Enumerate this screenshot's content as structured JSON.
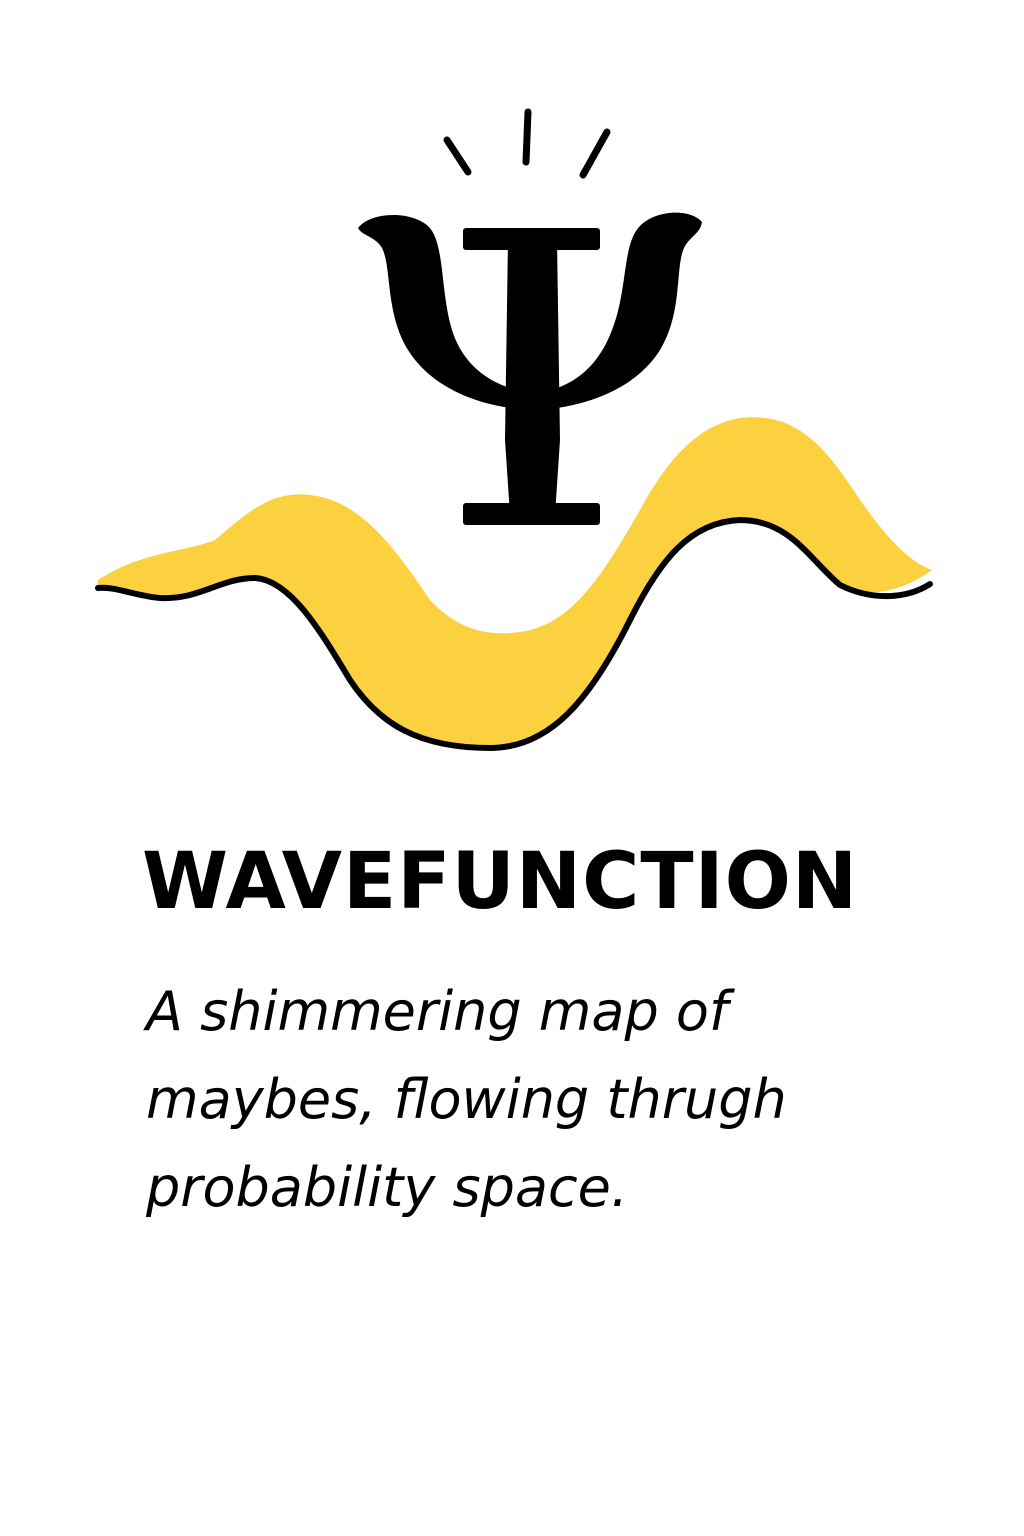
{
  "card": {
    "title": "WAVEFUNCTION",
    "tagline": [
      "A shimmering map of",
      "maybes, flowing thrugh",
      "probability space."
    ]
  },
  "icons": {
    "emblem": "psi-symbol-icon",
    "rays": "spark-rays-icon",
    "wave": "wave-icon"
  },
  "colors": {
    "wave_fill": "#fcd13f",
    "ink": "#000000",
    "background": "#ffffff"
  }
}
